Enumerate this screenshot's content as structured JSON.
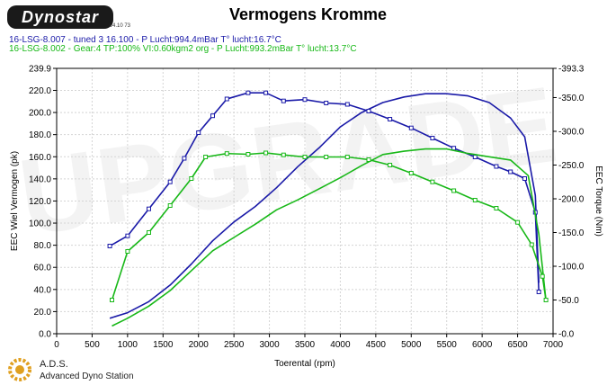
{
  "header": {
    "logo_text": "Dynostar",
    "logo_sub": "v4.10 73",
    "title": "Vermogens Kromme"
  },
  "runs": [
    {
      "label": "16-LSG-8.007 - tuned 3 16.100  - P Lucht:994.4mBar T° lucht:16.7°C",
      "color": "#1a1aa8"
    },
    {
      "label": "16-LSG-8.002 - Gear:4 TP:100% VI:0.60kgm2 org  - P Lucht:993.2mBar T° lucht:13.7°C",
      "color": "#18b818"
    }
  ],
  "footer": {
    "brand": "A.D.S.",
    "subtitle": "Advanced Dyno Station"
  },
  "watermark": "UPGRADE",
  "chart_data": {
    "type": "line",
    "xlabel": "Toerental (rpm)",
    "ylabel": "EEC Wiel Vermogen (pk)",
    "y2label": "EEC Torque (Nm)",
    "xlim": [
      0,
      7000
    ],
    "ylim": [
      0,
      239.9
    ],
    "y2lim": [
      0,
      393.3
    ],
    "x_ticks": [
      0,
      500,
      1000,
      1500,
      2000,
      2500,
      3000,
      3500,
      4000,
      4500,
      5000,
      5500,
      6000,
      6500,
      7000
    ],
    "y_ticks": [
      0.0,
      20.0,
      40.0,
      60.0,
      80.0,
      100.0,
      120.0,
      140.0,
      160.0,
      180.0,
      200.0,
      220.0,
      239.9
    ],
    "y_tick_labels": [
      "0.0",
      "20.0",
      "40.0",
      "60.0",
      "80.0",
      "100.0",
      "120.0",
      "140.0",
      "160.0",
      "180.0",
      "200.0",
      "220.0",
      "239.9"
    ],
    "y2_ticks": [
      0,
      50,
      100,
      150,
      200,
      250,
      300,
      350,
      393.3
    ],
    "y2_tick_labels": [
      "-0.0",
      "-50.0",
      "-100.0",
      "-150.0",
      "-200.0",
      "-250.0",
      "-300.0",
      "-350.0",
      "-393.3"
    ],
    "grid": true,
    "series": [
      {
        "name": "16-LSG-8.007 - tuned 3 16.100",
        "quantity": "power",
        "axis": "left",
        "color": "#1a1aa8",
        "markers": false,
        "x": [
          750,
          1000,
          1300,
          1600,
          1900,
          2200,
          2500,
          2800,
          3100,
          3400,
          3700,
          4000,
          4300,
          4600,
          4900,
          5200,
          5500,
          5800,
          6100,
          6400,
          6600,
          6750,
          6800
        ],
        "y": [
          14,
          19,
          29,
          44,
          63,
          84,
          101,
          115,
          132,
          151,
          168,
          187,
          200,
          209,
          214,
          217,
          217,
          215,
          209,
          195,
          178,
          125,
          46
        ]
      },
      {
        "name": "16-LSG-8.007 - tuned 3 16.100",
        "quantity": "torque",
        "axis": "right",
        "color": "#1a1aa8",
        "markers": true,
        "x": [
          750,
          1000,
          1300,
          1600,
          1800,
          2000,
          2200,
          2400,
          2700,
          2950,
          3200,
          3500,
          3800,
          4100,
          4400,
          4700,
          5000,
          5300,
          5600,
          5900,
          6200,
          6400,
          6600,
          6750,
          6800
        ],
        "y": [
          130,
          145,
          185,
          225,
          260,
          298,
          323,
          348,
          357,
          357,
          345,
          347,
          342,
          340,
          330,
          318,
          305,
          290,
          275,
          262,
          248,
          240,
          230,
          180,
          62
        ]
      },
      {
        "name": "16-LSG-8.002 - Gear:4 TP:100% VI:0.60kgm2 org",
        "quantity": "power",
        "axis": "left",
        "color": "#18b818",
        "markers": false,
        "x": [
          780,
          1000,
          1300,
          1600,
          1900,
          2200,
          2500,
          2800,
          3100,
          3400,
          3700,
          4000,
          4300,
          4600,
          4900,
          5200,
          5500,
          5800,
          6100,
          6400,
          6650,
          6800,
          6900
        ],
        "y": [
          7,
          14,
          25,
          39,
          57,
          75,
          87,
          99,
          112,
          121,
          131,
          141,
          152,
          162,
          165,
          167,
          167,
          163,
          160,
          157,
          143,
          90,
          30
        ]
      },
      {
        "name": "16-LSG-8.002 - Gear:4 TP:100% VI:0.60kgm2 org",
        "quantity": "torque",
        "axis": "right",
        "color": "#18b818",
        "markers": true,
        "x": [
          780,
          1000,
          1300,
          1600,
          1900,
          2100,
          2400,
          2700,
          2950,
          3200,
          3500,
          3800,
          4100,
          4400,
          4700,
          5000,
          5300,
          5600,
          5900,
          6200,
          6500,
          6700,
          6850,
          6900
        ],
        "y": [
          50,
          122,
          150,
          190,
          230,
          262,
          267,
          266,
          268,
          265,
          262,
          262,
          262,
          258,
          250,
          238,
          225,
          212,
          198,
          186,
          165,
          132,
          85,
          50
        ]
      }
    ]
  }
}
